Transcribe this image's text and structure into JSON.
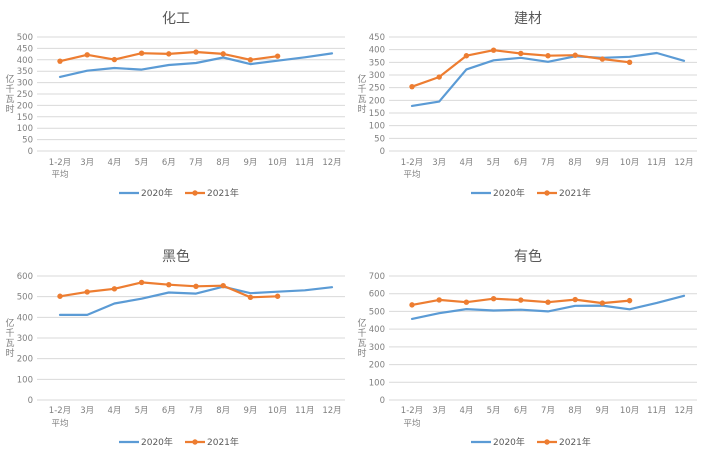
{
  "page": {
    "background": "#ffffff"
  },
  "charts_common": {
    "y_axis_title": "亿千瓦时",
    "legend_labels": [
      "2020年",
      "2021年"
    ],
    "colors": {
      "series_2020": "#5B9BD5",
      "series_2021": "#ED7D31",
      "gridline": "#D9D9D9",
      "tick_text": "#808080",
      "title_text": "#595959",
      "legend_text": "#595959"
    }
  },
  "chart_data": [
    {
      "type": "line",
      "title": "化工",
      "xlabel": "",
      "ylabel": "亿千瓦时",
      "ylim": [
        0,
        500
      ],
      "ytick_step": 50,
      "grid": true,
      "legend_position": "bottom",
      "categories": [
        "1-2月\n平均",
        "3月",
        "4月",
        "5月",
        "6月",
        "7月",
        "8月",
        "9月",
        "10月",
        "11月",
        "12月"
      ],
      "series": [
        {
          "name": "2020年",
          "color": "#5B9BD5",
          "marker": "none",
          "values": [
            325,
            352,
            364,
            357,
            377,
            386,
            410,
            381,
            396,
            411,
            428
          ]
        },
        {
          "name": "2021年",
          "color": "#ED7D31",
          "marker": "circle",
          "values": [
            394,
            422,
            401,
            429,
            426,
            434,
            426,
            400,
            416
          ]
        }
      ]
    },
    {
      "type": "line",
      "title": "建材",
      "xlabel": "",
      "ylabel": "亿千瓦时",
      "ylim": [
        0,
        450
      ],
      "ytick_step": 50,
      "grid": true,
      "legend_position": "bottom",
      "categories": [
        "1-2月\n平均",
        "3月",
        "4月",
        "5月",
        "6月",
        "7月",
        "8月",
        "9月",
        "10月",
        "11月",
        "12月"
      ],
      "series": [
        {
          "name": "2020年",
          "color": "#5B9BD5",
          "marker": "none",
          "values": [
            178,
            195,
            322,
            358,
            368,
            352,
            374,
            368,
            372,
            387,
            356
          ]
        },
        {
          "name": "2021年",
          "color": "#ED7D31",
          "marker": "circle",
          "values": [
            254,
            292,
            376,
            398,
            385,
            376,
            378,
            363,
            350
          ]
        }
      ]
    },
    {
      "type": "line",
      "title": "黑色",
      "xlabel": "",
      "ylabel": "亿千瓦时",
      "ylim": [
        0,
        600
      ],
      "ytick_step": 100,
      "grid": true,
      "legend_position": "bottom",
      "categories": [
        "1-2月\n平均",
        "3月",
        "4月",
        "5月",
        "6月",
        "7月",
        "8月",
        "9月",
        "10月",
        "11月",
        "12月"
      ],
      "series": [
        {
          "name": "2020年",
          "color": "#5B9BD5",
          "marker": "none",
          "values": [
            412,
            412,
            467,
            490,
            520,
            515,
            548,
            517,
            524,
            531,
            546
          ]
        },
        {
          "name": "2021年",
          "color": "#ED7D31",
          "marker": "circle",
          "values": [
            502,
            523,
            538,
            569,
            558,
            550,
            553,
            497,
            502
          ]
        }
      ]
    },
    {
      "type": "line",
      "title": "有色",
      "xlabel": "",
      "ylabel": "亿千瓦时",
      "ylim": [
        0,
        700
      ],
      "ytick_step": 100,
      "grid": true,
      "legend_position": "bottom",
      "categories": [
        "1-2月\n平均",
        "3月",
        "4月",
        "5月",
        "6月",
        "7月",
        "8月",
        "9月",
        "10月",
        "11月",
        "12月"
      ],
      "series": [
        {
          "name": "2020年",
          "color": "#5B9BD5",
          "marker": "none",
          "values": [
            458,
            490,
            513,
            505,
            510,
            500,
            532,
            533,
            512,
            548,
            588
          ]
        },
        {
          "name": "2021年",
          "color": "#ED7D31",
          "marker": "circle",
          "values": [
            537,
            565,
            552,
            572,
            564,
            552,
            567,
            547,
            561
          ]
        }
      ]
    }
  ]
}
